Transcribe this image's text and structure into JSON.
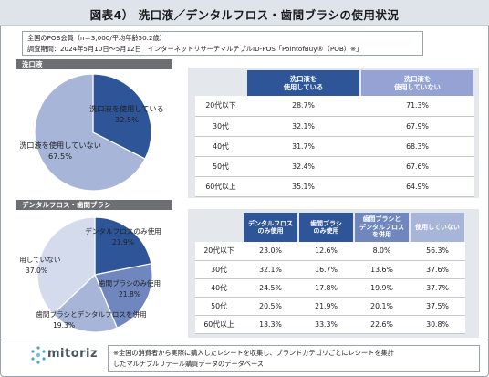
{
  "title": "図表4） 洗口液／デンタルフロス・歯間ブラシの使用状況",
  "meta": {
    "line1": "全国のPOB会員（n＝3,000/平均年齢50.2歳）",
    "line2": "調査期間：2024年5月10日～5月12日　インターネットリサーチマルチプルID-POS「PointofBuy®（POB）※」"
  },
  "section1": {
    "label": "洗口液"
  },
  "section2": {
    "label": "デンタルフロス・歯間ブラシ"
  },
  "colors": {
    "dark_blue": "#2e5597",
    "mid_blue": "#6f86bf",
    "light_blue": "#a7b5d9",
    "pale_blue": "#d3dbed",
    "header_lilac": "#95a3d4",
    "panel_bg": "#e4e7eb"
  },
  "chart_data": [
    {
      "type": "pie",
      "series": [
        {
          "name": "洗口液を使用している",
          "values": [
            32.5
          ],
          "color": "#2e5597"
        },
        {
          "name": "洗口液を使用していない",
          "values": [
            67.5
          ],
          "color": "#a7b5d9"
        }
      ],
      "labels": {
        "used": "洗口液を使用している",
        "used_pct": "32.5%",
        "unused": "洗口液を使用していない",
        "unused_pct": "67.5%"
      }
    },
    {
      "type": "table",
      "columns": [
        "洗口液を\n使用している",
        "洗口液を\n使用していない"
      ],
      "column_lines": [
        [
          "洗口液を",
          "使用している"
        ],
        [
          "洗口液を",
          "使用していない"
        ]
      ],
      "rows": [
        {
          "age": "20代以下",
          "values": [
            "28.7%",
            "71.3%"
          ]
        },
        {
          "age": "30代",
          "values": [
            "32.1%",
            "67.9%"
          ]
        },
        {
          "age": "40代",
          "values": [
            "31.7%",
            "68.3%"
          ]
        },
        {
          "age": "50代",
          "values": [
            "32.4%",
            "67.6%"
          ]
        },
        {
          "age": "60代以上",
          "values": [
            "35.1%",
            "64.9%"
          ]
        }
      ]
    },
    {
      "type": "pie",
      "series": [
        {
          "name": "デンタルフロスのみ使用",
          "values": [
            21.9
          ],
          "color": "#2e5597"
        },
        {
          "name": "歯間ブラシのみ使用",
          "values": [
            21.8
          ],
          "color": "#6f86bf"
        },
        {
          "name": "歯間ブラシとデンタルフロスを併用",
          "values": [
            19.3
          ],
          "color": "#a7b5d9"
        },
        {
          "name": "使用していない",
          "values": [
            37.0
          ],
          "color": "#d3dbed"
        }
      ],
      "labels": {
        "floss": "デンタルフロスのみ使用",
        "floss_pct": "21.9%",
        "brush": "歯間ブラシのみ使用",
        "brush_pct": "21.8%",
        "both": "歯間ブラシとデンタルフロスを併用",
        "both_pct": "19.3%",
        "none": "使用していない",
        "none_pct": "37.0%"
      }
    },
    {
      "type": "table",
      "column_lines": [
        [
          "デンタルフロス",
          "のみ使用"
        ],
        [
          "歯間ブラシ",
          "のみ使用"
        ],
        [
          "歯間ブラシと",
          "デンタルフロス",
          "を併用"
        ],
        [
          "使用していない"
        ]
      ],
      "rows": [
        {
          "age": "20代以下",
          "values": [
            "23.0%",
            "12.6%",
            "8.0%",
            "56.3%"
          ]
        },
        {
          "age": "30代",
          "values": [
            "32.1%",
            "16.7%",
            "13.6%",
            "37.6%"
          ]
        },
        {
          "age": "40代",
          "values": [
            "24.5%",
            "17.8%",
            "19.9%",
            "37.7%"
          ]
        },
        {
          "age": "50代",
          "values": [
            "20.5%",
            "21.9%",
            "20.1%",
            "37.5%"
          ]
        },
        {
          "age": "60代以上",
          "values": [
            "13.3%",
            "33.3%",
            "22.6%",
            "30.8%"
          ]
        }
      ]
    }
  ],
  "footer": {
    "logo_text": "mitoriz",
    "note_line1": "※全国の消費者から実際に購入したレシートを収集し、ブランドカテゴリごとにレシートを集計",
    "note_line2": "したマルチプルリテール購買データのデータベース"
  }
}
